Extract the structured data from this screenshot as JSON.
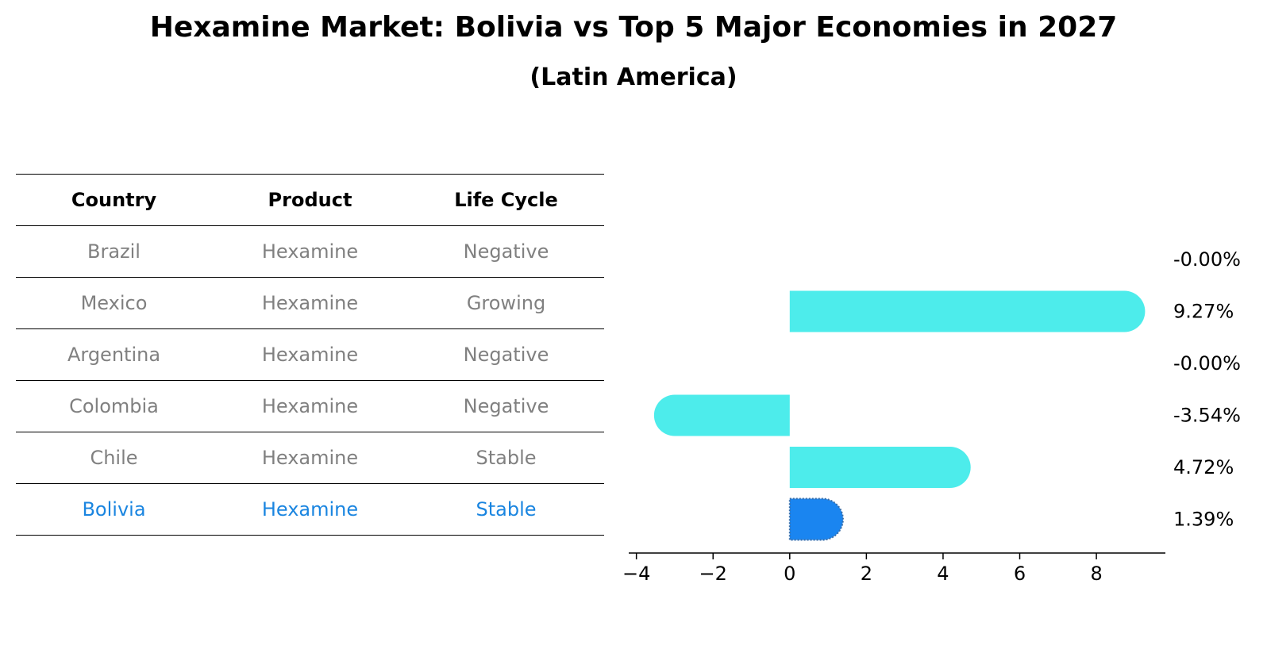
{
  "title": "Hexamine Market: Bolivia vs Top 5 Major Economies in 2027",
  "subtitle": "(Latin America)",
  "table": {
    "headers": [
      "Country",
      "Product",
      "Life Cycle"
    ],
    "rows": [
      {
        "country": "Brazil",
        "product": "Hexamine",
        "life_cycle": "Negative"
      },
      {
        "country": "Mexico",
        "product": "Hexamine",
        "life_cycle": "Growing"
      },
      {
        "country": "Argentina",
        "product": "Hexamine",
        "life_cycle": "Negative"
      },
      {
        "country": "Colombia",
        "product": "Hexamine",
        "life_cycle": "Negative"
      },
      {
        "country": "Chile",
        "product": "Hexamine",
        "life_cycle": "Stable"
      },
      {
        "country": "Bolivia",
        "product": "Hexamine",
        "life_cycle": "Stable"
      }
    ],
    "highlight_row": 5
  },
  "chart_data": {
    "type": "bar",
    "orientation": "horizontal",
    "categories": [
      "Brazil",
      "Mexico",
      "Argentina",
      "Colombia",
      "Chile",
      "Bolivia"
    ],
    "values": [
      -0.0,
      9.27,
      -0.0,
      -3.54,
      4.72,
      1.39
    ],
    "value_labels": [
      "-0.00%",
      "9.27%",
      "-0.00%",
      "-3.54%",
      "4.72%",
      "1.39%"
    ],
    "xlim": [
      -4.2,
      9.8
    ],
    "xticks": [
      -4,
      -2,
      0,
      2,
      4,
      6,
      8
    ],
    "xtick_labels": [
      "−4",
      "−2",
      "0",
      "2",
      "4",
      "6",
      "8"
    ],
    "highlight_index": 5,
    "colors": {
      "default": "#4deceb",
      "highlight": "#1a85f0"
    },
    "grid": false
  }
}
